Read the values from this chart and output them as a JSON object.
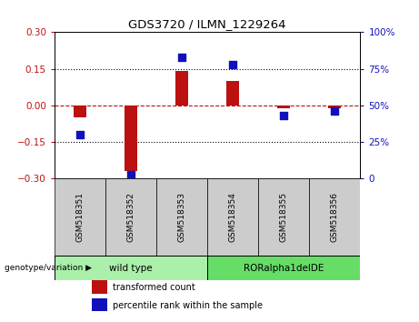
{
  "title": "GDS3720 / ILMN_1229264",
  "samples": [
    "GSM518351",
    "GSM518352",
    "GSM518353",
    "GSM518354",
    "GSM518355",
    "GSM518356"
  ],
  "transformed_count": [
    -0.05,
    -0.27,
    0.14,
    0.1,
    -0.01,
    -0.01
  ],
  "percentile_rank": [
    30,
    3,
    83,
    78,
    43,
    46
  ],
  "ylim_left": [
    -0.3,
    0.3
  ],
  "ylim_right": [
    0,
    100
  ],
  "yticks_left": [
    -0.3,
    -0.15,
    0,
    0.15,
    0.3
  ],
  "yticks_right": [
    0,
    25,
    50,
    75,
    100
  ],
  "dotted_lines": [
    -0.15,
    0.15
  ],
  "bar_color": "#bb1111",
  "scatter_color": "#1111bb",
  "bar_width": 0.25,
  "scatter_size": 40,
  "groups": [
    {
      "label": "wild type",
      "samples": [
        0,
        1,
        2
      ],
      "color": "#aaf0aa"
    },
    {
      "label": "RORalpha1delDE",
      "samples": [
        3,
        4,
        5
      ],
      "color": "#66dd66"
    }
  ],
  "sample_row_color": "#cccccc",
  "group_label_text": "genotype/variation ▶",
  "legend_items": [
    {
      "label": "transformed count",
      "color": "#bb1111"
    },
    {
      "label": "percentile rank within the sample",
      "color": "#1111bb"
    }
  ]
}
